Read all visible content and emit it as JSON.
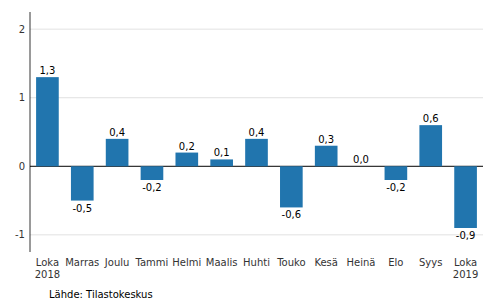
{
  "chart_data": {
    "type": "bar",
    "categories": [
      "Loka\n2018",
      "Marras",
      "Joulu",
      "Tammi",
      "Helmi",
      "Maalis",
      "Huhti",
      "Touko",
      "Kesä",
      "Heinä",
      "Elo",
      "Syys",
      "Loka\n2019"
    ],
    "values": [
      1.3,
      -0.5,
      0.4,
      -0.2,
      0.2,
      0.1,
      0.4,
      -0.6,
      0.3,
      0.0,
      -0.2,
      0.6,
      -0.9
    ],
    "value_labels": [
      "1,3",
      "-0,5",
      "0,4",
      "-0,2",
      "0,2",
      "0,1",
      "0,4",
      "-0,6",
      "0,3",
      "0,0",
      "-0,2",
      "0,6",
      "-0,9"
    ],
    "data_labels": true,
    "color": "#2175AE",
    "ylim": [
      -1.25,
      2.25
    ],
    "yticks": [
      -1,
      0,
      1,
      2
    ],
    "grid": true,
    "annotations": [
      "Lähde: Tilastokeskus"
    ]
  }
}
